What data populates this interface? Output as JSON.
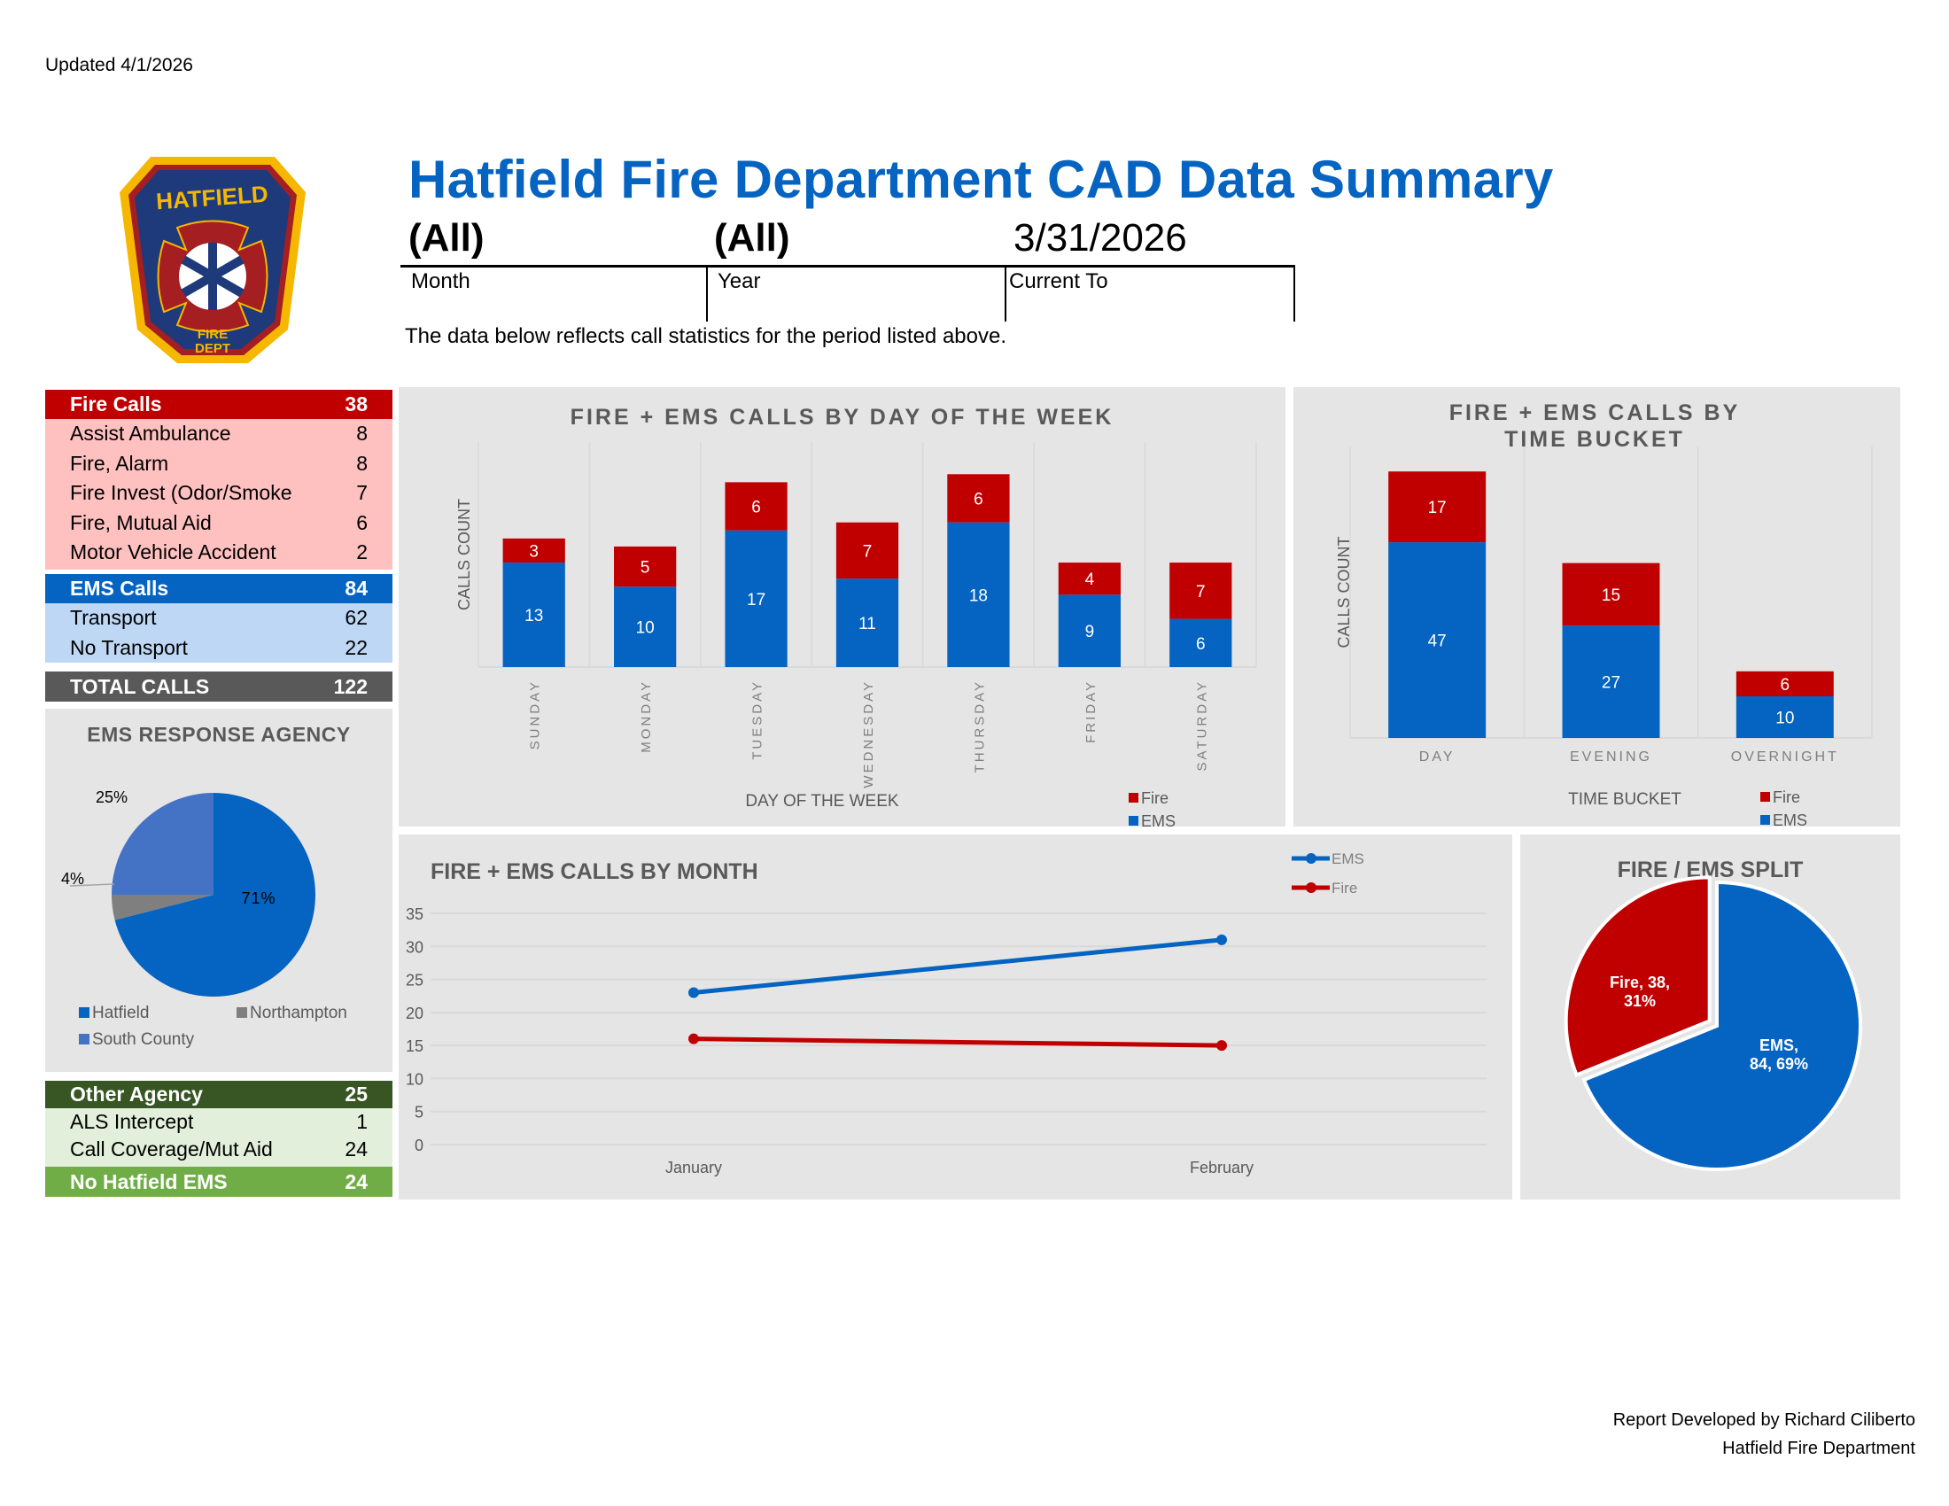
{
  "updated": "Updated 4/1/2026",
  "logo": {
    "top_text": "HATFIELD",
    "bottom_line1": "FIRE",
    "bottom_line2": "DEPT",
    "colors": {
      "outer": "#f5b700",
      "ring": "#a41e22",
      "field": "#1f3a7a"
    }
  },
  "header": {
    "title": "Hatfield Fire Department CAD Data Summary",
    "filters": [
      {
        "value": "(All)",
        "label": "Month"
      },
      {
        "value": "(All)",
        "label": "Year"
      },
      {
        "value": "3/31/2026",
        "label": "Current To"
      }
    ],
    "description": "The data below reflects call statistics for the period listed above."
  },
  "colors": {
    "fire": "#c00000",
    "ems": "#0563c1",
    "fire_light": "#ffc0c0",
    "ems_light": "#bdd7f5",
    "total": "#595959",
    "other_dark": "#375623",
    "other_light": "#e2efda",
    "no_hatfield": "#70ad47",
    "panel": "#e5e5e5",
    "title_gray": "#595959"
  },
  "fire_calls": {
    "label": "Fire Calls",
    "total": "38",
    "rows": [
      {
        "label": "Assist Ambulance",
        "value": "8"
      },
      {
        "label": "Fire, Alarm",
        "value": "8"
      },
      {
        "label": "Fire Invest (Odor/Smoke",
        "value": "7"
      },
      {
        "label": "Fire, Mutual Aid",
        "value": "6"
      },
      {
        "label": "Motor Vehicle Accident",
        "value": "2"
      }
    ]
  },
  "ems_calls": {
    "label": "EMS Calls",
    "total": "84",
    "rows": [
      {
        "label": "Transport",
        "value": "62"
      },
      {
        "label": "No Transport",
        "value": "22"
      }
    ]
  },
  "total_calls": {
    "label": "TOTAL CALLS",
    "value": "122"
  },
  "other_agency": {
    "label": "Other Agency",
    "total": "25",
    "rows": [
      {
        "label": "ALS Intercept",
        "value": "1"
      },
      {
        "label": "Call Coverage/Mut Aid",
        "value": "24"
      }
    ]
  },
  "no_hatfield": {
    "label": "No Hatfield EMS",
    "value": "24"
  },
  "chart_data": [
    {
      "id": "ems_agency",
      "type": "pie",
      "title": "EMS RESPONSE AGENCY",
      "slices": [
        {
          "name": "Hatfield",
          "value": 71,
          "label": "71%",
          "color": "#0563c1"
        },
        {
          "name": "Northampton",
          "value": 4,
          "label": "4%",
          "color": "#7f7f7f"
        },
        {
          "name": "South County",
          "value": 25,
          "label": "25%",
          "color": "#4472c4"
        }
      ],
      "legend": [
        "Hatfield",
        "Northampton",
        "South County"
      ],
      "legend_position": "bottom"
    },
    {
      "id": "day_of_week",
      "type": "bar",
      "stacked": true,
      "title": "FIRE + EMS CALLS BY DAY OF THE WEEK",
      "xlabel": "DAY OF THE WEEK",
      "ylabel": "CALLS COUNT",
      "categories": [
        "SUNDAY",
        "MONDAY",
        "TUESDAY",
        "WEDNESDAY",
        "THURSDAY",
        "FRIDAY",
        "SATURDAY"
      ],
      "series": [
        {
          "name": "EMS",
          "values": [
            13,
            10,
            17,
            11,
            18,
            9,
            6
          ]
        },
        {
          "name": "Fire",
          "values": [
            3,
            5,
            6,
            7,
            6,
            4,
            7
          ]
        }
      ],
      "legend": [
        "Fire",
        "EMS"
      ],
      "legend_position": "bottom-right",
      "ylim": [
        0,
        28
      ]
    },
    {
      "id": "time_bucket",
      "type": "bar",
      "stacked": true,
      "title": "FIRE + EMS CALLS BY TIME BUCKET",
      "xlabel": "TIME BUCKET",
      "ylabel": "CALLS COUNT",
      "categories": [
        "DAY",
        "EVENING",
        "OVERNIGHT"
      ],
      "series": [
        {
          "name": "EMS",
          "values": [
            47,
            27,
            10
          ]
        },
        {
          "name": "Fire",
          "values": [
            17,
            15,
            6
          ]
        }
      ],
      "legend": [
        "Fire",
        "EMS"
      ],
      "legend_position": "bottom-right",
      "ylim": [
        0,
        70
      ]
    },
    {
      "id": "by_month",
      "type": "line",
      "title": "FIRE + EMS CALLS BY MONTH",
      "categories": [
        "January",
        "February"
      ],
      "series": [
        {
          "name": "EMS",
          "values": [
            23,
            31
          ]
        },
        {
          "name": "Fire",
          "values": [
            16,
            15
          ]
        }
      ],
      "yticks": [
        0,
        5,
        10,
        15,
        20,
        25,
        30,
        35
      ],
      "ylim": [
        0,
        35
      ],
      "grid": true,
      "legend_position": "top-right"
    },
    {
      "id": "fire_ems_split",
      "type": "pie",
      "title": "FIRE / EMS SPLIT",
      "slices": [
        {
          "name": "EMS",
          "value": 84,
          "label_line1": "EMS,",
          "label_line2": "84, 69%",
          "color": "#0563c1"
        },
        {
          "name": "Fire",
          "value": 38,
          "label_line1": "Fire, 38,",
          "label_line2": "31%",
          "color": "#c00000"
        }
      ]
    }
  ],
  "credit": {
    "line1": "Report Developed by Richard Ciliberto",
    "line2": "Hatfield Fire Department"
  }
}
